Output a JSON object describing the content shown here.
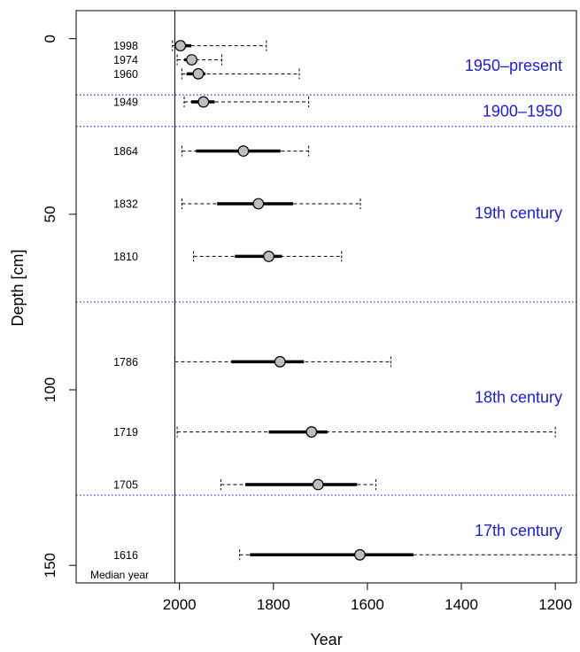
{
  "chart_data": {
    "type": "scatter",
    "xlabel": "Year",
    "ylabel": "Depth [cm]",
    "xlim": [
      2220,
      1155
    ],
    "ylim": [
      155,
      -8
    ],
    "x_axis_reversed": true,
    "y_axis_reversed": true,
    "x_ticks": [
      2000,
      1800,
      1600,
      1400,
      1200
    ],
    "x_tick_labels": [
      "2000",
      "1800",
      "1600",
      "1400",
      "1200"
    ],
    "y_ticks": [
      0,
      50,
      100,
      150
    ],
    "y_tick_labels": [
      "0",
      "50",
      "100",
      "150"
    ],
    "reference_line_year": 2010,
    "median_year_note": "Median year",
    "samples": [
      {
        "label": "1998",
        "depth": 2,
        "median": 1998,
        "inner": [
          2000,
          1975
        ],
        "outer": [
          2015,
          1815
        ]
      },
      {
        "label": "1974",
        "depth": 6,
        "median": 1974,
        "inner": [
          1990,
          1962
        ],
        "outer": [
          2005,
          1910
        ]
      },
      {
        "label": "1960",
        "depth": 10,
        "median": 1960,
        "inner": [
          1985,
          1945
        ],
        "outer": [
          1995,
          1745
        ]
      },
      {
        "label": "1949",
        "depth": 18,
        "median": 1949,
        "inner": [
          1975,
          1925
        ],
        "outer": [
          1990,
          1725
        ]
      },
      {
        "label": "1864",
        "depth": 32,
        "median": 1864,
        "inner": [
          1965,
          1785
        ],
        "outer": [
          1995,
          1725
        ]
      },
      {
        "label": "1832",
        "depth": 47,
        "median": 1832,
        "inner": [
          1920,
          1758
        ],
        "outer": [
          1995,
          1615
        ]
      },
      {
        "label": "1810",
        "depth": 62,
        "median": 1810,
        "inner": [
          1882,
          1782
        ],
        "outer": [
          1970,
          1655
        ]
      },
      {
        "label": "1786",
        "depth": 92,
        "median": 1786,
        "inner": [
          1890,
          1735
        ],
        "outer": [
          2010,
          1550
        ]
      },
      {
        "label": "1719",
        "depth": 112,
        "median": 1719,
        "inner": [
          1810,
          1685
        ],
        "outer": [
          2005,
          1200
        ]
      },
      {
        "label": "1705",
        "depth": 127,
        "median": 1705,
        "inner": [
          1860,
          1622
        ],
        "outer": [
          1912,
          1582
        ]
      },
      {
        "label": "1616",
        "depth": 147,
        "median": 1616,
        "inner": [
          1850,
          1502
        ],
        "outer": [
          1872,
          1155
        ]
      }
    ],
    "period_boundaries": [
      16,
      25,
      75,
      130
    ],
    "periods": [
      {
        "label": "1950–present",
        "depth": 7.5
      },
      {
        "label": "1900–1950",
        "depth": 20.5
      },
      {
        "label": "19th century",
        "depth": 49.5
      },
      {
        "label": "18th century",
        "depth": 102
      },
      {
        "label": "17th century",
        "depth": 140
      }
    ],
    "colors": {
      "period_text": "#1a1aee",
      "boundary_line": "#2b2bd6",
      "point_fill": "#bebebe",
      "axis": "#000000"
    }
  }
}
